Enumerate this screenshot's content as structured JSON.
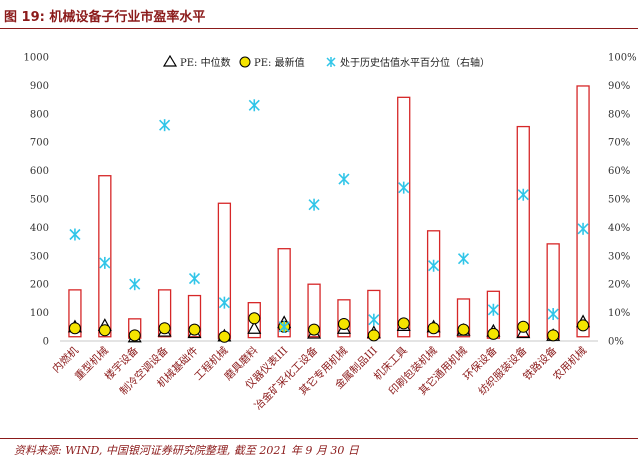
{
  "figure": {
    "title": "图 19:  机械设备子行业市盈率水平",
    "source": "资料来源: WIND, 中国银河证券研究院整理, 截至 2021 年 9 月 30 日"
  },
  "colors": {
    "bar_edge": "#d62728",
    "marker_median": "#000000",
    "marker_latest": "#f5e400",
    "marker_pct": "#30c5e8",
    "title": "#8b1a1a"
  },
  "chart_data": {
    "type": "bar",
    "categories": [
      "内燃机",
      "重型机械",
      "楼宇设备",
      "制冷空调设备",
      "机械基础件",
      "工程机械",
      "磨具磨料",
      "仪器仪表III",
      "冶金矿采化工设备",
      "其它专用机械",
      "金属制品III",
      "机床工具",
      "印刷包装机械",
      "其它通用机械",
      "环保设备",
      "纺织服装设备",
      "铁路设备",
      "农用机械"
    ],
    "series": [
      {
        "name": "",
        "kind": "bar_range",
        "low": [
          15,
          15,
          10,
          15,
          15,
          8,
          12,
          15,
          15,
          15,
          10,
          15,
          15,
          15,
          10,
          15,
          10,
          15
        ],
        "high": [
          180,
          582,
          78,
          180,
          160,
          485,
          135,
          325,
          200,
          145,
          178,
          858,
          388,
          148,
          175,
          755,
          342,
          898
        ]
      },
      {
        "name": "PE: 中位数",
        "marker": "triangle",
        "values": [
          50,
          55,
          15,
          35,
          30,
          18,
          45,
          65,
          28,
          45,
          30,
          55,
          50,
          38,
          35,
          30,
          20,
          68
        ]
      },
      {
        "name": "PE: 最新值",
        "marker": "circle",
        "values": [
          45,
          38,
          20,
          45,
          40,
          15,
          80,
          50,
          40,
          60,
          20,
          62,
          45,
          40,
          25,
          50,
          20,
          55
        ]
      },
      {
        "name": "处于历史估值水平百分位（右轴）",
        "marker": "asterisk",
        "axis": "right",
        "values": [
          37.5,
          27.5,
          20,
          76,
          22,
          13.5,
          83,
          5,
          48,
          57,
          7.5,
          54,
          26.5,
          29,
          11,
          51.5,
          9.5,
          39.5
        ]
      }
    ],
    "left_axis": {
      "ylim": [
        0,
        1000
      ],
      "ticks": [
        "0",
        "100",
        "200",
        "300",
        "400",
        "500",
        "600",
        "700",
        "800",
        "900",
        "1000"
      ]
    },
    "right_axis": {
      "ylim": [
        0,
        100
      ],
      "ticks": [
        "0%",
        "10%",
        "20%",
        "30%",
        "40%",
        "50%",
        "60%",
        "70%",
        "80%",
        "90%",
        "100%"
      ]
    },
    "legend_position": "top",
    "grid": false
  }
}
